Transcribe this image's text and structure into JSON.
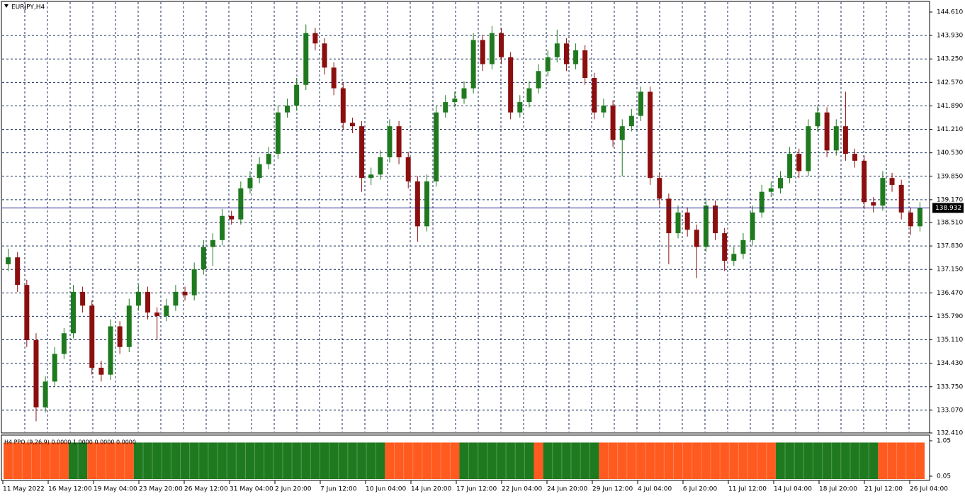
{
  "chart_data": {
    "type": "candlestick",
    "title": "EURJPY,H4",
    "ylim": [
      132.41,
      144.61
    ],
    "yticks": [
      {
        "value": 144.61,
        "label": "144.610"
      },
      {
        "value": 143.93,
        "label": "143.930"
      },
      {
        "value": 143.25,
        "label": "143.250"
      },
      {
        "value": 142.57,
        "label": "142.570"
      },
      {
        "value": 141.89,
        "label": "141.890"
      },
      {
        "value": 141.21,
        "label": "141.210"
      },
      {
        "value": 140.53,
        "label": "140.530"
      },
      {
        "value": 139.85,
        "label": "139.850"
      },
      {
        "value": 139.17,
        "label": "139.170"
      },
      {
        "value": 138.51,
        "label": "138.510"
      },
      {
        "value": 137.83,
        "label": "137.830"
      },
      {
        "value": 137.15,
        "label": "137.150"
      },
      {
        "value": 136.47,
        "label": "136.470"
      },
      {
        "value": 135.79,
        "label": "135.790"
      },
      {
        "value": 135.11,
        "label": "135.110"
      },
      {
        "value": 134.43,
        "label": "134.430"
      },
      {
        "value": 133.75,
        "label": "133.750"
      },
      {
        "value": 133.07,
        "label": "133.070"
      },
      {
        "value": 132.41,
        "label": "132.410"
      }
    ],
    "grid": true,
    "up_color": "#1f7a1f",
    "down_color": "#8b0f0f",
    "current_price": 138.932,
    "current_price_color": "#1c1c8c",
    "x_labels": [
      "11 May 2022",
      "16 May 12:00",
      "19 May 04:00",
      "23 May 20:00",
      "26 May 12:00",
      "31 May 04:00",
      "2 Jun 20:00",
      "7 Jun 12:00",
      "10 Jun 04:00",
      "14 Jun 20:00",
      "17 Jun 12:00",
      "22 Jun 04:00",
      "24 Jun 20:00",
      "29 Jun 12:00",
      "4 Jul 04:00",
      "6 Jul 20:00",
      "11 Jul 12:00",
      "14 Jul 04:00",
      "18 Jul 20:00",
      "21 Jul 12:00",
      "26 Jul 04:00"
    ],
    "candles": [
      [
        137.3,
        137.75,
        137.1,
        137.5
      ],
      [
        137.5,
        137.65,
        136.5,
        136.7
      ],
      [
        136.7,
        136.85,
        134.9,
        135.1
      ],
      [
        135.1,
        135.3,
        132.75,
        133.15
      ],
      [
        133.15,
        134.05,
        133.0,
        133.9
      ],
      [
        133.9,
        134.9,
        133.75,
        134.7
      ],
      [
        134.7,
        135.45,
        134.55,
        135.3
      ],
      [
        135.3,
        136.7,
        135.15,
        136.5
      ],
      [
        136.5,
        136.65,
        135.9,
        136.1
      ],
      [
        136.1,
        136.25,
        134.1,
        134.3
      ],
      [
        134.3,
        134.5,
        133.9,
        134.1
      ],
      [
        134.1,
        135.7,
        133.95,
        135.5
      ],
      [
        135.5,
        135.65,
        134.7,
        134.9
      ],
      [
        134.9,
        136.3,
        134.75,
        136.1
      ],
      [
        136.1,
        136.7,
        135.95,
        136.5
      ],
      [
        136.5,
        136.65,
        135.7,
        135.9
      ],
      [
        135.9,
        136.05,
        135.1,
        135.8
      ],
      [
        135.8,
        136.3,
        135.65,
        136.1
      ],
      [
        136.1,
        136.7,
        135.95,
        136.5
      ],
      [
        136.5,
        136.65,
        136.25,
        136.4
      ],
      [
        136.4,
        137.35,
        136.25,
        137.15
      ],
      [
        137.15,
        138.0,
        137.0,
        137.8
      ],
      [
        137.8,
        138.2,
        137.25,
        138.0
      ],
      [
        138.0,
        138.9,
        137.85,
        138.7
      ],
      [
        138.7,
        138.85,
        138.45,
        138.6
      ],
      [
        138.6,
        139.7,
        138.45,
        139.5
      ],
      [
        139.5,
        140.0,
        139.35,
        139.8
      ],
      [
        139.8,
        140.4,
        139.65,
        140.2
      ],
      [
        140.2,
        140.7,
        140.05,
        140.5
      ],
      [
        140.5,
        141.9,
        140.35,
        141.7
      ],
      [
        141.7,
        142.1,
        141.55,
        141.9
      ],
      [
        141.9,
        142.7,
        141.75,
        142.5
      ],
      [
        142.5,
        144.25,
        142.35,
        144.0
      ],
      [
        144.0,
        144.15,
        143.5,
        143.7
      ],
      [
        143.7,
        143.85,
        142.8,
        143.0
      ],
      [
        143.0,
        143.15,
        142.2,
        142.4
      ],
      [
        142.4,
        142.55,
        141.2,
        141.4
      ],
      [
        141.4,
        141.55,
        141.1,
        141.3
      ],
      [
        141.3,
        141.45,
        139.4,
        139.8
      ],
      [
        139.8,
        140.1,
        139.6,
        139.9
      ],
      [
        139.9,
        140.6,
        139.75,
        140.4
      ],
      [
        140.4,
        141.5,
        140.25,
        141.3
      ],
      [
        141.3,
        141.45,
        140.2,
        140.4
      ],
      [
        140.4,
        140.55,
        139.5,
        139.7
      ],
      [
        139.7,
        139.85,
        137.95,
        138.4
      ],
      [
        138.4,
        139.9,
        138.25,
        139.7
      ],
      [
        139.7,
        141.9,
        139.55,
        141.7
      ],
      [
        141.7,
        142.2,
        141.55,
        142.0
      ],
      [
        142.0,
        142.3,
        141.85,
        142.1
      ],
      [
        142.1,
        142.6,
        141.95,
        142.4
      ],
      [
        142.4,
        144.0,
        142.25,
        143.8
      ],
      [
        143.8,
        143.95,
        142.9,
        143.1
      ],
      [
        143.1,
        144.2,
        142.95,
        144.0
      ],
      [
        144.0,
        144.15,
        143.1,
        143.3
      ],
      [
        143.3,
        143.45,
        141.5,
        141.7
      ],
      [
        141.7,
        142.2,
        141.55,
        142.0
      ],
      [
        142.0,
        142.6,
        141.85,
        142.4
      ],
      [
        142.4,
        143.1,
        142.25,
        142.9
      ],
      [
        142.9,
        143.5,
        142.75,
        143.3
      ],
      [
        143.3,
        144.1,
        143.15,
        143.7
      ],
      [
        143.7,
        143.85,
        142.9,
        143.1
      ],
      [
        143.1,
        143.7,
        142.95,
        143.5
      ],
      [
        143.5,
        143.65,
        142.5,
        142.7
      ],
      [
        142.7,
        142.85,
        141.5,
        141.7
      ],
      [
        141.7,
        142.1,
        141.55,
        141.9
      ],
      [
        141.9,
        142.05,
        140.7,
        140.9
      ],
      [
        140.9,
        141.5,
        139.85,
        141.3
      ],
      [
        141.3,
        141.8,
        141.15,
        141.6
      ],
      [
        141.6,
        142.45,
        141.45,
        142.3
      ],
      [
        142.3,
        142.45,
        139.6,
        139.8
      ],
      [
        139.8,
        139.95,
        139.0,
        139.2
      ],
      [
        139.2,
        139.35,
        137.3,
        138.2
      ],
      [
        138.2,
        139.0,
        138.05,
        138.8
      ],
      [
        138.8,
        138.95,
        138.1,
        138.3
      ],
      [
        138.3,
        138.45,
        136.9,
        137.8
      ],
      [
        137.8,
        139.2,
        137.65,
        139.0
      ],
      [
        139.0,
        139.15,
        138.0,
        138.2
      ],
      [
        138.2,
        138.35,
        137.1,
        137.4
      ],
      [
        137.4,
        137.8,
        137.25,
        137.6
      ],
      [
        137.6,
        138.2,
        137.45,
        138.0
      ],
      [
        138.0,
        139.0,
        137.85,
        138.8
      ],
      [
        138.8,
        139.6,
        138.65,
        139.4
      ],
      [
        139.4,
        139.7,
        139.25,
        139.5
      ],
      [
        139.5,
        140.0,
        139.35,
        139.8
      ],
      [
        139.8,
        140.7,
        139.65,
        140.5
      ],
      [
        140.5,
        140.65,
        139.8,
        140.0
      ],
      [
        140.0,
        141.5,
        139.85,
        141.3
      ],
      [
        141.3,
        141.9,
        141.15,
        141.7
      ],
      [
        141.7,
        141.85,
        140.4,
        140.6
      ],
      [
        140.6,
        141.5,
        140.45,
        141.3
      ],
      [
        141.3,
        142.3,
        140.3,
        140.5
      ],
      [
        140.5,
        140.65,
        140.1,
        140.3
      ],
      [
        140.3,
        140.45,
        138.9,
        139.1
      ],
      [
        139.1,
        139.25,
        138.8,
        139.0
      ],
      [
        139.0,
        140.0,
        138.85,
        139.8
      ],
      [
        139.8,
        139.95,
        139.4,
        139.6
      ],
      [
        139.6,
        139.75,
        138.6,
        138.8
      ],
      [
        138.8,
        138.95,
        138.15,
        138.4
      ],
      [
        138.4,
        139.1,
        138.25,
        138.93
      ]
    ],
    "indicator": {
      "label": "H4 PPO (9,26,9) 0.0000 1.0000 0.0000 0.0000",
      "ylim": [
        0.05,
        1.05
      ],
      "yticks": [
        1.05,
        0.05
      ],
      "segments": [
        {
          "color": "#ff5a1f",
          "count": 7,
          "value": 1
        },
        {
          "color": "#1f7a1f",
          "count": 2,
          "value": 1
        },
        {
          "color": "#ff5a1f",
          "count": 5,
          "value": 1
        },
        {
          "color": "#1f7a1f",
          "count": 27,
          "value": 1
        },
        {
          "color": "#ff5a1f",
          "count": 8,
          "value": 1
        },
        {
          "color": "#1f7a1f",
          "count": 8,
          "value": 1
        },
        {
          "color": "#ff5a1f",
          "count": 1,
          "value": 1
        },
        {
          "color": "#1f7a1f",
          "count": 6,
          "value": 1
        },
        {
          "color": "#ff5a1f",
          "count": 19,
          "value": 1
        },
        {
          "color": "#1f7a1f",
          "count": 11,
          "value": 1
        },
        {
          "color": "#ff5a1f",
          "count": 5,
          "value": 1
        }
      ]
    }
  }
}
